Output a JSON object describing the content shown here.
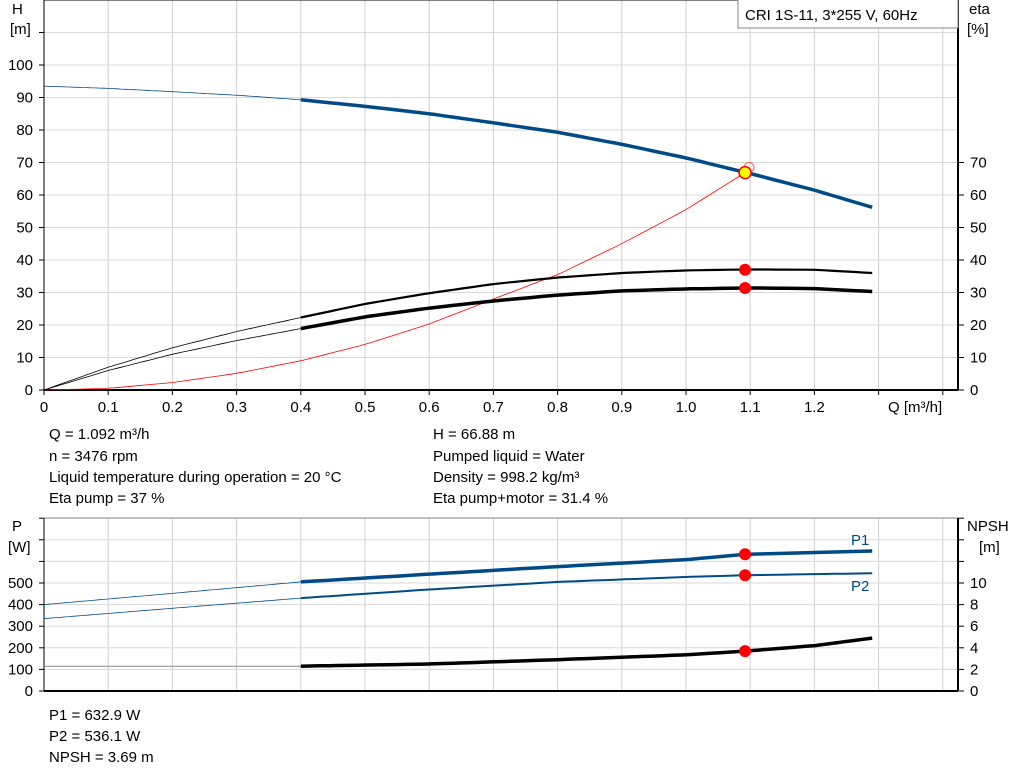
{
  "chart_data": [
    {
      "type": "line",
      "legend_box": "CRI 1S-11, 3*255 V, 60Hz",
      "xlabel": "Q [m³/h]",
      "ylabel_left": [
        "H",
        "[m]"
      ],
      "ylabel_right": [
        "eta",
        "[%]"
      ],
      "xlim": [
        0,
        1.4
      ],
      "ylim_left": [
        0,
        110
      ],
      "ylim_right": [
        0,
        70
      ],
      "x_ticks": [
        "0",
        "0.1",
        "0.2",
        "0.3",
        "0.4",
        "0.5",
        "0.6",
        "0.7",
        "0.8",
        "0.9",
        "1.0",
        "1.1",
        "1.2"
      ],
      "y_ticks_left": [
        "0",
        "10",
        "20",
        "30",
        "40",
        "50",
        "60",
        "70",
        "80",
        "90",
        "100"
      ],
      "y_ticks_right": [
        "0",
        "10",
        "20",
        "30",
        "40",
        "50",
        "60",
        "70"
      ],
      "grid": true,
      "x": [
        0,
        0.1,
        0.2,
        0.3,
        0.4,
        0.5,
        0.6,
        0.7,
        0.8,
        0.9,
        1.0,
        1.1,
        1.2,
        1.29
      ],
      "series": [
        {
          "key": "H",
          "color": "#004b87",
          "values": [
            93.5,
            92.8,
            91.8,
            90.7,
            89.3,
            87.3,
            85.0,
            82.2,
            79.3,
            75.6,
            71.4,
            66.6,
            61.5,
            56.2
          ]
        },
        {
          "key": "eta_pump",
          "color": "#000000",
          "values": [
            0,
            7,
            13,
            18,
            22.3,
            26.5,
            29.8,
            32.6,
            34.6,
            36.0,
            36.8,
            37.1,
            37.0,
            36.0
          ]
        },
        {
          "key": "eta_pump_motor",
          "color": "#000000",
          "values": [
            0,
            6,
            11,
            15.2,
            18.9,
            22.5,
            25.2,
            27.4,
            29.2,
            30.5,
            31.1,
            31.4,
            31.2,
            30.3
          ]
        }
      ],
      "system_curve": {
        "color": "#ff0000",
        "x": [
          0,
          0.1,
          0.2,
          0.3,
          0.4,
          0.5,
          0.6,
          0.7,
          0.8,
          0.9,
          1.0,
          1.092
        ],
        "values": [
          0,
          0.5,
          2.3,
          5.1,
          9,
          14,
          20.3,
          28,
          35.5,
          45,
          55.5,
          66.88
        ]
      },
      "duty_point": {
        "Q": 1.092,
        "H": 66.88,
        "eta_pump": 37,
        "eta_pump_motor": 31.4
      },
      "point_color_duty": "#ffff00",
      "point_color": "#ff0000"
    },
    {
      "type": "line",
      "ylabel_left": [
        "P",
        "[W]"
      ],
      "ylabel_right": [
        "NPSH",
        "[m]"
      ],
      "xlim": [
        0,
        1.4
      ],
      "ylim_left": [
        0,
        800
      ],
      "ylim_right": [
        0,
        16
      ],
      "y_ticks_left": [
        "0",
        "100",
        "200",
        "300",
        "400",
        "500"
      ],
      "y_ticks_right": [
        "0",
        "2",
        "4",
        "6",
        "8",
        "10"
      ],
      "grid": true,
      "x": [
        0,
        0.2,
        0.4,
        0.6,
        0.8,
        1.0,
        1.092,
        1.2,
        1.29
      ],
      "series": [
        {
          "name": "P1",
          "axis": "left",
          "color": "#004b87",
          "values": [
            400,
            452,
            505,
            541,
            576,
            608,
            632.9,
            641,
            648
          ]
        },
        {
          "name": "P2",
          "axis": "left",
          "color": "#004b87",
          "values": [
            335,
            383,
            430,
            470,
            505,
            528,
            536.1,
            541,
            545
          ]
        },
        {
          "key": "NPSH",
          "axis": "right",
          "color": "#000000",
          "values": [
            2.3,
            2.3,
            2.3,
            2.5,
            2.9,
            3.35,
            3.69,
            4.2,
            4.9
          ]
        }
      ],
      "duty_point_Q": 1.092
    }
  ],
  "info_top": {
    "left": [
      "Q = 1.092 m³/h",
      "n = 3476 rpm",
      "Liquid temperature during operation = 20 °C",
      "Eta pump = 37 %"
    ],
    "right": [
      "H = 66.88 m",
      "Pumped liquid = Water",
      "Density = 998.2 kg/m³",
      "Eta pump+motor = 31.4 %"
    ]
  },
  "info_bottom": [
    "P1 = 632.9 W",
    "P2 = 536.1 W",
    "NPSH = 3.69 m"
  ]
}
